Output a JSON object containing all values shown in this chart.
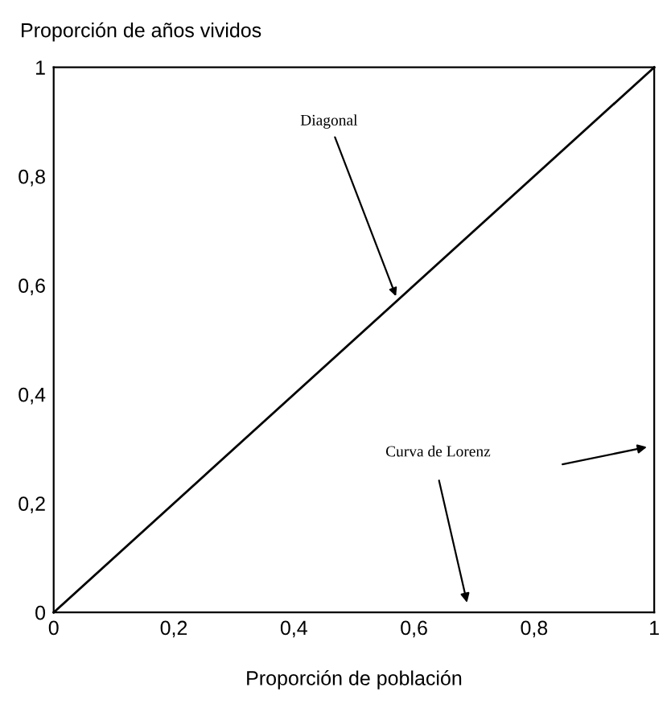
{
  "chart_data": {
    "type": "line",
    "xlabel": "Proporción de población",
    "ylabel": "Proporción de años vividos",
    "series": [
      {
        "x": [
          0,
          1
        ],
        "values": [
          0,
          1
        ],
        "color": "#000000"
      }
    ],
    "annotations": [
      {
        "text": "Diagonal",
        "x": 0.57,
        "y": 0.58
      },
      "Curva de Lorenz"
    ],
    "xlim": [
      0,
      1
    ],
    "ylim": [
      0,
      1
    ],
    "xticks": [
      0,
      {
        "value": 0.2,
        "label": "0,2"
      },
      {
        "value": 0.4,
        "label": "0,4"
      },
      {
        "value": 0.6,
        "label": "0,6"
      },
      {
        "value": 0.8,
        "label": "0,8"
      },
      1
    ],
    "yticks": [
      0,
      {
        "value": 0.2,
        "label": "0,2"
      },
      {
        "value": 0.4,
        "label": "0,4"
      },
      {
        "value": 0.6,
        "label": "0,6"
      },
      {
        "value": 0.8,
        "label": "0,8"
      },
      1
    ],
    "grid": false,
    "legend": false,
    "marker": "none",
    "line_style": "solid"
  }
}
